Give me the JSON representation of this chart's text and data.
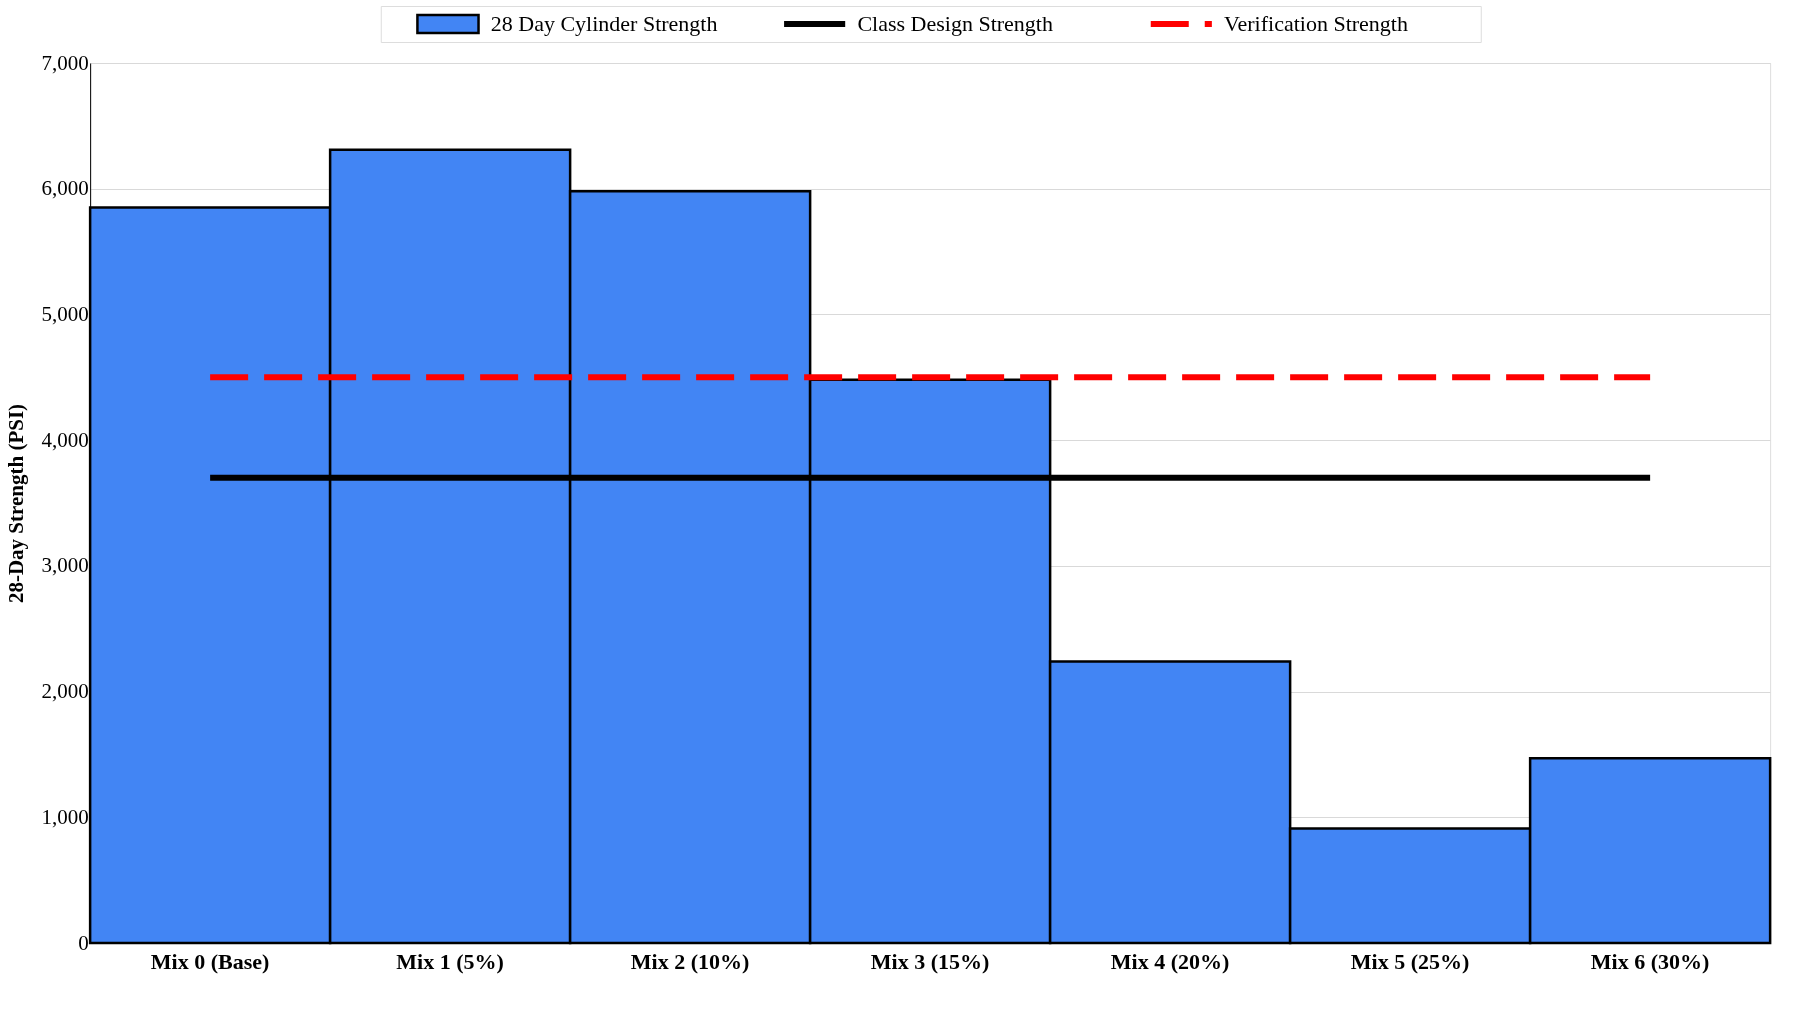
{
  "chart_data": {
    "type": "bar",
    "ylabel": "28-Day Strength (PSI)",
    "categories": [
      "Mix 0 (Base)",
      "Mix 1 (5%)",
      "Mix 2 (10%)",
      "Mix 3 (15%)",
      "Mix 4 (20%)",
      "Mix 5 (25%)",
      "Mix 6 (30%)"
    ],
    "series": [
      {
        "name": "28 Day Cylinder Strength",
        "color": "#4285f4",
        "values": [
          5850,
          6310,
          5980,
          4480,
          2240,
          910,
          1470
        ]
      },
      {
        "name": "Class Design Strength",
        "type": "line",
        "color": "#000000",
        "line_style": "solid",
        "values": [
          3700,
          3700,
          3700,
          3700,
          3700,
          3700,
          3700
        ]
      },
      {
        "name": "Verification Strength",
        "type": "line",
        "color": "#ff0000",
        "line_style": "dashed",
        "values": [
          4500,
          4500,
          4500,
          4500,
          4500,
          4500,
          4500
        ]
      }
    ],
    "ylim": [
      0,
      7000
    ],
    "yticks": [
      0,
      {
        "value": 1000,
        "label": "1,000"
      },
      {
        "value": 2000,
        "label": "2,000"
      },
      {
        "value": 3000,
        "label": "3,000"
      },
      {
        "value": 4000,
        "label": "4,000"
      },
      {
        "value": 5000,
        "label": "5,000"
      },
      {
        "value": 6000,
        "label": "6,000"
      },
      {
        "value": 7000,
        "label": "7,000"
      }
    ],
    "grid": "y",
    "legend": "top",
    "marker": "none"
  }
}
